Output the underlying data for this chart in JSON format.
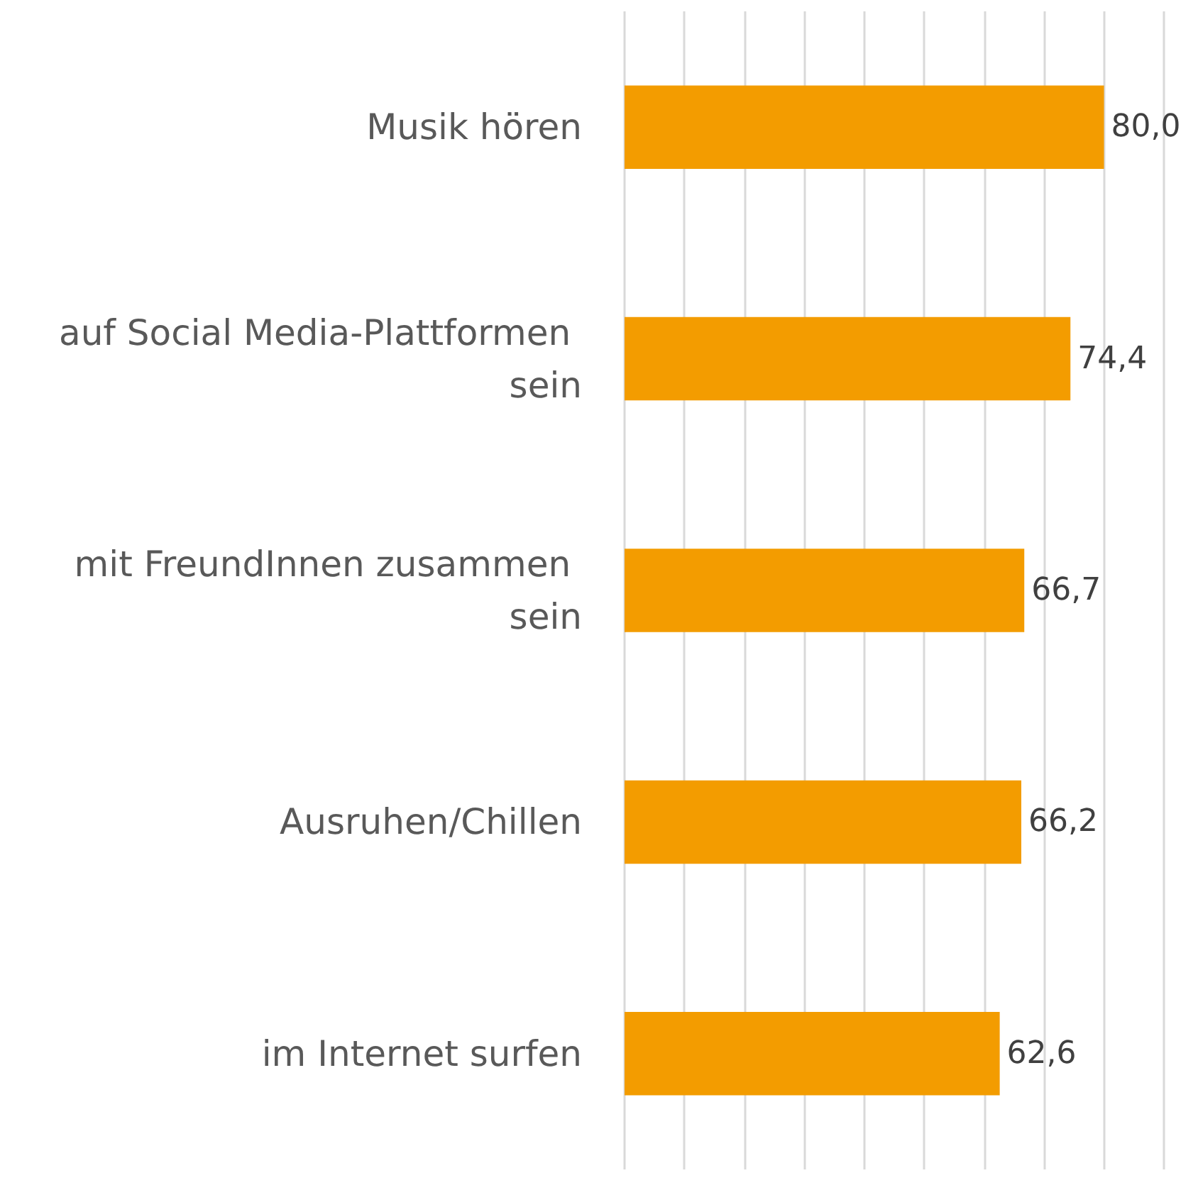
{
  "chart_data": {
    "type": "bar",
    "orientation": "horizontal",
    "categories": [
      "Musik hören",
      "auf Social Media-Plattformen sein",
      "mit FreundInnen zusammen sein",
      "Ausruhen/Chillen",
      "im Internet surfen"
    ],
    "values": [
      80.0,
      74.4,
      66.7,
      66.2,
      62.6
    ],
    "value_labels": [
      "80,0",
      "74,4",
      "66,7",
      "66,2",
      "62,6"
    ],
    "color": "#f39c00",
    "xlim": [
      0,
      90
    ],
    "xticks": [
      {
        "value": 0,
        "label": null
      },
      {
        "value": 10,
        "label": null
      },
      {
        "value": 20,
        "label": null
      },
      {
        "value": 30,
        "label": null
      },
      {
        "value": 40,
        "label": null
      },
      {
        "value": 50,
        "label": null
      },
      {
        "value": 60,
        "label": null
      },
      {
        "value": 70,
        "label": null
      },
      {
        "value": 80,
        "label": null
      },
      {
        "value": 90,
        "label": null
      }
    ],
    "grid": "x",
    "tick_labels": "y"
  }
}
